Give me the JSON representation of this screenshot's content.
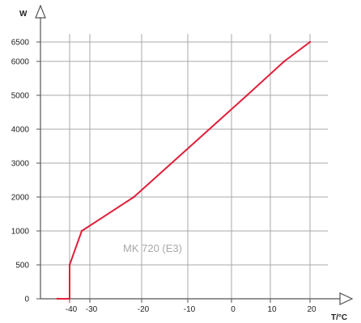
{
  "chart_data": {
    "type": "line",
    "title": "",
    "xlabel": "T/°C",
    "ylabel": "W",
    "annotation": "MK 720 (E3)",
    "grid": true,
    "legend": "none",
    "x": [
      -46,
      -40,
      -40,
      -40,
      -34,
      -21.5,
      4,
      13.5,
      20
    ],
    "y": [
      0,
      0,
      300,
      500,
      1000,
      2000,
      5000,
      6000,
      6500
    ],
    "xlim": [
      -50,
      25
    ],
    "ylim": [
      0,
      6700
    ],
    "x_ticks": [
      -40,
      -30,
      -20,
      -10,
      0,
      10,
      20
    ],
    "x_tick_labels": [
      "-40",
      "-30",
      "-20",
      "-10",
      "0",
      "10",
      "20"
    ],
    "y_ticks": [
      0,
      500,
      1000,
      2000,
      3000,
      4000,
      5000,
      6000,
      6500
    ],
    "y_tick_labels": [
      "0",
      "500",
      "1000",
      "2000",
      "3000",
      "4000",
      "5000",
      "6000",
      "6500"
    ],
    "colors": {
      "series": "#e0203a",
      "grid": "#a9a9a9",
      "axis": "#555555",
      "annotation": "#a8a8a8",
      "text": "#222222"
    }
  }
}
